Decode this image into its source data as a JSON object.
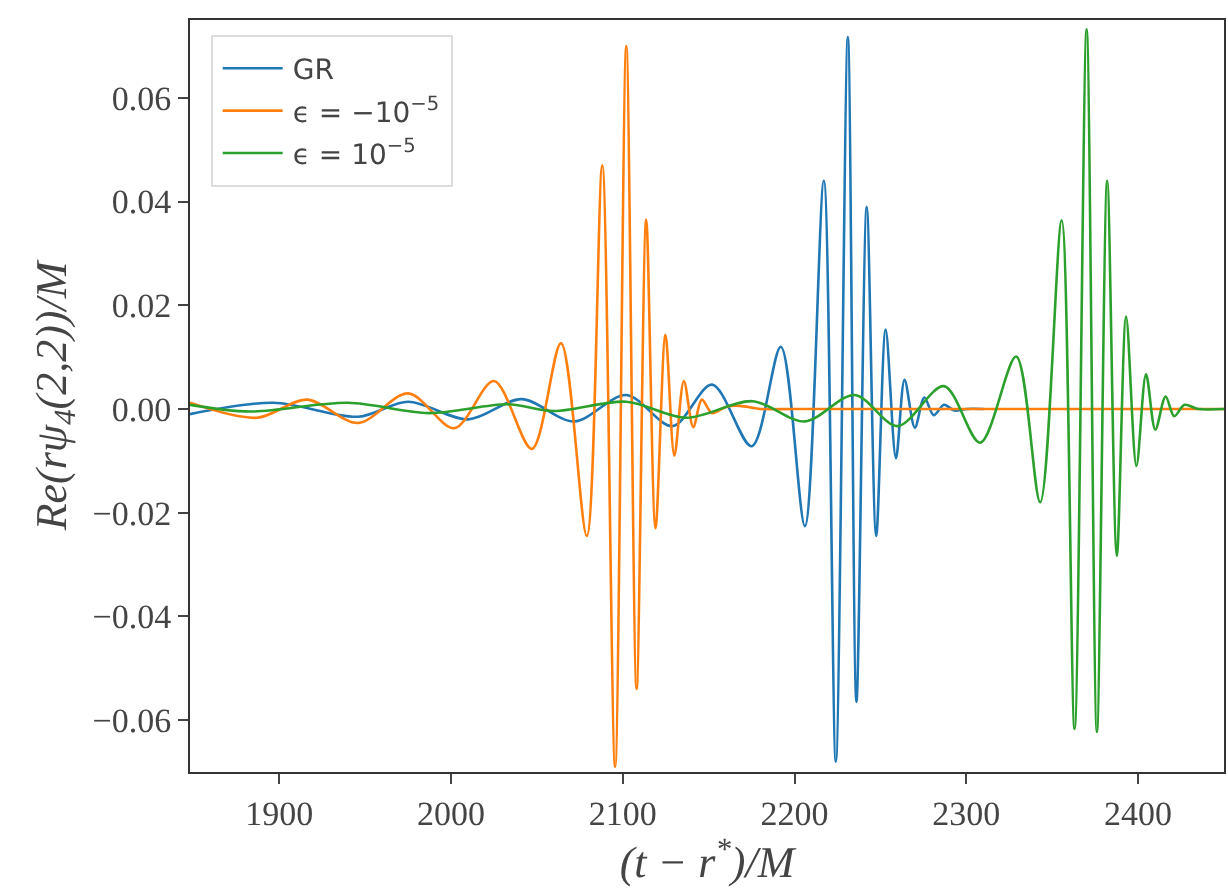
{
  "chart_data": {
    "type": "line",
    "xlabel": "(t − r$^{*}$)/M",
    "ylabel": "Re(rψ$_{4}$(2,2))/M",
    "xlim": [
      1848,
      2450
    ],
    "ylim": [
      -0.07,
      0.075
    ],
    "xticks": [
      1900,
      2000,
      2100,
      2200,
      2300,
      2400
    ],
    "yticks": [
      {
        "value": -0.06,
        "label": "−0.06"
      },
      {
        "value": -0.04,
        "label": "−0.04"
      },
      {
        "value": -0.02,
        "label": "−0.02"
      },
      {
        "value": 0,
        "label": "0.00"
      },
      {
        "value": 0.02,
        "label": "0.02"
      },
      {
        "value": 0.04,
        "label": "0.04"
      },
      {
        "value": 0.06,
        "label": "0.06"
      }
    ],
    "grid": false,
    "legend": "top left",
    "line_style": "solid",
    "marker": "none",
    "series": [
      {
        "name": "GR",
        "color": "#1f77b4",
        "x": [
          1848,
          1896.5,
          1946,
          1975,
          2010,
          2041,
          2071.7,
          2102,
          2129,
          2152,
          2175,
          2192,
          2206,
          2217,
          2224,
          2231,
          2236,
          2242,
          2247.5,
          2253,
          2259,
          2264,
          2270,
          2275.5,
          2281,
          2287,
          2293,
          2300,
          2310
        ],
        "values": [
          -0.001,
          0.0012,
          -0.0015,
          0.0014,
          -0.002,
          0.0019,
          -0.0024,
          0.0027,
          -0.0033,
          0.0047,
          -0.0072,
          0.012,
          -0.0226,
          0.044,
          -0.068,
          0.0717,
          -0.0565,
          0.039,
          -0.0245,
          0.0153,
          -0.0095,
          0.0056,
          -0.0036,
          0.0022,
          -0.0012,
          0.0008,
          -0.0003,
          0,
          0
        ]
      },
      {
        "name": "ϵ = −10$^{−5}$",
        "color": "#ff7f0e",
        "x": [
          1848,
          1887,
          1916,
          1946,
          1975,
          2002,
          2025,
          2047,
          2064,
          2079,
          2088,
          2095.5,
          2102,
          2108,
          2113.6,
          2119,
          2124.8,
          2130,
          2135.5,
          2141,
          2146,
          2152,
          2160,
          2168,
          2180,
          2200,
          2300,
          2450
        ],
        "values": [
          0.0012,
          -0.0017,
          0.0018,
          -0.0027,
          0.003,
          -0.0037,
          0.0054,
          -0.0077,
          0.0127,
          -0.0245,
          0.047,
          -0.069,
          0.07,
          -0.054,
          0.0365,
          -0.023,
          0.0143,
          -0.009,
          0.0054,
          -0.0035,
          0.0018,
          -0.0008,
          0.0004,
          0.0006,
          0,
          0,
          0,
          0
        ]
      },
      {
        "name": "ϵ = 10$^{−5}$",
        "color": "#2ca02c",
        "x": [
          1848,
          1883,
          1940,
          1987,
          2033,
          2060,
          2102,
          2137,
          2175.5,
          2206,
          2235,
          2260,
          2287,
          2308,
          2329,
          2343,
          2355.5,
          2363,
          2370,
          2376,
          2382,
          2387.6,
          2393,
          2399,
          2404.6,
          2410,
          2416,
          2421,
          2427,
          2435,
          2450
        ],
        "values": [
          0.0008,
          -0.0005,
          0.0012,
          -0.0008,
          0.0009,
          -0.0004,
          0.0014,
          -0.0017,
          0.0015,
          -0.0024,
          0.0027,
          -0.0033,
          0.0044,
          -0.0065,
          0.0101,
          -0.018,
          0.0364,
          -0.0617,
          0.0732,
          -0.0623,
          0.044,
          -0.0283,
          0.0178,
          -0.011,
          0.0067,
          -0.004,
          0.0024,
          -0.0014,
          0.0008,
          0,
          0
        ]
      }
    ]
  }
}
